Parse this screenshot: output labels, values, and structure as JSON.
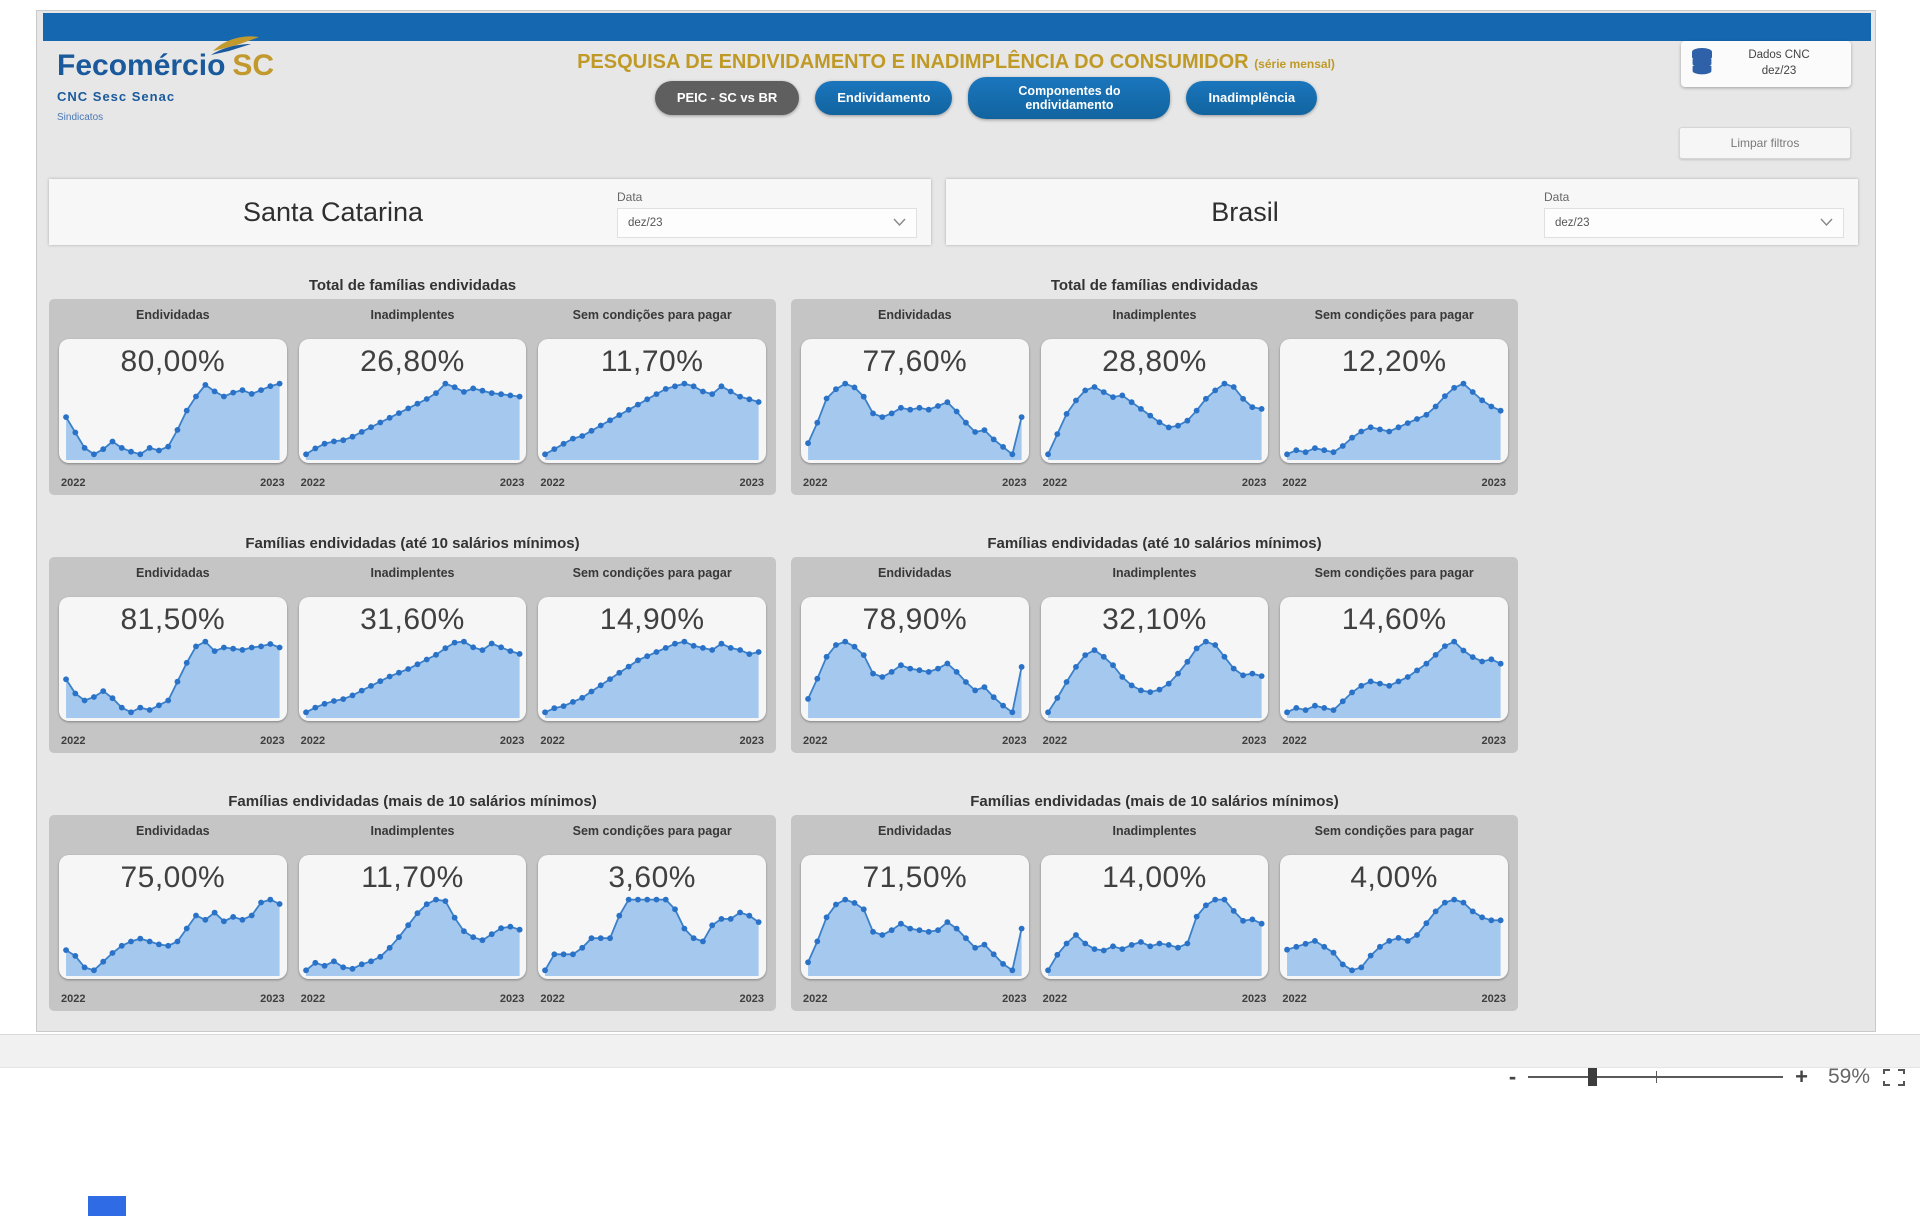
{
  "page": {
    "zoom_percent": "59%"
  },
  "colors": {
    "topbar_blue": "#1568b0",
    "brand_blue": "#1a5a9c",
    "brand_gold": "#c2992d",
    "title_gold": "#c09a27",
    "button_blue": "#146bb0",
    "button_dark": "#5f5f5f",
    "chart_fill": "#a5c9ee",
    "chart_line": "#3b80c9",
    "chart_dot": "#2a72c8",
    "group_gray": "#c5c5c5"
  },
  "icons": {
    "logo_swoosh": "logo-swoosh-icon",
    "database": "database-icon",
    "chevron_down": "chevron-down-icon",
    "minus": "minus-icon",
    "plus": "plus-icon",
    "fit_to_page": "fit-to-page-icon"
  },
  "header": {
    "logo": {
      "brand": "Fecomércio",
      "brand_accent": "SC",
      "sub": "CNC Sesc Senac",
      "sub2": "Sindicatos"
    },
    "title": "PESQUISA DE ENDIVIDAMENTO E INADIMPLÊNCIA DO CONSUMIDOR",
    "title_suffix": "(série mensal)",
    "nav_buttons": [
      {
        "label": "PEIC - SC vs BR",
        "active": true
      },
      {
        "label": "Endividamento",
        "active": false
      },
      {
        "label": "Componentes do endividamento",
        "active": false
      },
      {
        "label": "Inadimplência",
        "active": false
      }
    ],
    "data_source": {
      "line1": "Dados CNC",
      "line2": "dez/23"
    },
    "clear_filters_label": "Limpar filtros"
  },
  "filters": [
    {
      "region": "Santa Catarina",
      "date_label": "Data",
      "date_value": "dez/23"
    },
    {
      "region": "Brasil",
      "date_label": "Data",
      "date_value": "dez/23"
    }
  ],
  "zoom_bar": {
    "minus": "-",
    "plus": "+",
    "percent": "59%"
  },
  "chart_data": {
    "type": "area",
    "x": [
      "2022",
      "2023"
    ],
    "grid": false,
    "note": "monthly series jan/22 - dez/23, values in %, big label = last value (dez/23)",
    "regions": [
      {
        "name": "Santa Catarina",
        "sections": [
          {
            "title": "Total de famílias endividadas",
            "charts": [
              {
                "label": "Endividadas",
                "value_label": "80,00%",
                "values": [
                  77.4,
                  76.2,
                  75.0,
                  74.5,
                  74.9,
                  75.5,
                  75.0,
                  74.7,
                  74.5,
                  75.0,
                  74.8,
                  75.1,
                  76.4,
                  77.9,
                  79.0,
                  79.9,
                  79.4,
                  79.0,
                  79.3,
                  79.5,
                  79.2,
                  79.5,
                  79.8,
                  80.0
                ]
              },
              {
                "label": "Inadimplentes",
                "value_label": "26,80%",
                "values": [
                  21.9,
                  22.4,
                  22.8,
                  23.0,
                  23.1,
                  23.4,
                  23.8,
                  24.2,
                  24.6,
                  25.0,
                  25.4,
                  25.8,
                  26.2,
                  26.6,
                  27.1,
                  27.9,
                  27.6,
                  27.2,
                  27.5,
                  27.3,
                  27.1,
                  27.0,
                  26.9,
                  26.8
                ]
              },
              {
                "label": "Sem condições para pagar",
                "value_label": "11,70%",
                "values": [
                  9.7,
                  9.9,
                  10.1,
                  10.3,
                  10.4,
                  10.6,
                  10.8,
                  11.0,
                  11.2,
                  11.4,
                  11.6,
                  11.8,
                  12.0,
                  12.2,
                  12.3,
                  12.4,
                  12.3,
                  12.1,
                  12.0,
                  12.3,
                  12.1,
                  11.9,
                  11.8,
                  11.7
                ]
              }
            ]
          },
          {
            "title": "Famílias endividadas (até 10 salários mínimos)",
            "charts": [
              {
                "label": "Endividadas",
                "value_label": "81,50%",
                "values": [
                  78.8,
                  77.6,
                  77.0,
                  77.3,
                  77.8,
                  77.2,
                  76.4,
                  76.0,
                  76.4,
                  76.2,
                  76.6,
                  77.0,
                  78.6,
                  80.2,
                  81.6,
                  82.0,
                  81.2,
                  81.5,
                  81.4,
                  81.3,
                  81.5,
                  81.6,
                  81.8,
                  81.5
                ]
              },
              {
                "label": "Inadimplentes",
                "value_label": "31,60%",
                "values": [
                  25.4,
                  25.9,
                  26.3,
                  26.6,
                  26.8,
                  27.2,
                  27.7,
                  28.2,
                  28.7,
                  29.2,
                  29.6,
                  30.0,
                  30.5,
                  31.0,
                  31.5,
                  32.2,
                  32.8,
                  32.9,
                  32.3,
                  32.0,
                  32.7,
                  32.3,
                  31.9,
                  31.6
                ]
              },
              {
                "label": "Sem condições para pagar",
                "value_label": "14,90%",
                "values": [
                  12.0,
                  12.2,
                  12.3,
                  12.5,
                  12.7,
                  13.0,
                  13.3,
                  13.6,
                  13.9,
                  14.2,
                  14.5,
                  14.7,
                  14.9,
                  15.1,
                  15.3,
                  15.4,
                  15.2,
                  15.1,
                  15.0,
                  15.3,
                  15.1,
                  15.0,
                  14.8,
                  14.9
                ]
              }
            ]
          },
          {
            "title": "Famílias endividadas (mais de 10 salários mínimos)",
            "charts": [
              {
                "label": "Endividadas",
                "value_label": "75,00%",
                "values": [
                  71.8,
                  71.4,
                  70.6,
                  70.4,
                  71.0,
                  71.6,
                  72.1,
                  72.4,
                  72.6,
                  72.4,
                  72.2,
                  72.1,
                  72.4,
                  73.3,
                  74.2,
                  73.9,
                  74.4,
                  73.8,
                  74.1,
                  73.9,
                  74.2,
                  75.1,
                  75.3,
                  75.0
                ]
              },
              {
                "label": "Inadimplentes",
                "value_label": "11,70%",
                "values": [
                  9.0,
                  9.5,
                  9.3,
                  9.6,
                  9.2,
                  9.1,
                  9.4,
                  9.6,
                  9.9,
                  10.5,
                  11.2,
                  12.0,
                  12.8,
                  13.4,
                  13.7,
                  13.6,
                  12.5,
                  11.6,
                  11.2,
                  11.0,
                  11.4,
                  11.8,
                  11.9,
                  11.7
                ]
              },
              {
                "label": "Sem condições para pagar",
                "value_label": "3,60%",
                "values": [
                  2.1,
                  2.6,
                  2.6,
                  2.6,
                  2.8,
                  3.1,
                  3.1,
                  3.1,
                  3.8,
                  4.3,
                  4.3,
                  4.3,
                  4.3,
                  4.3,
                  4.0,
                  3.4,
                  3.1,
                  3.0,
                  3.5,
                  3.7,
                  3.7,
                  3.9,
                  3.8,
                  3.6
                ]
              }
            ]
          }
        ]
      },
      {
        "name": "Brasil",
        "sections": [
          {
            "title": "Total de famílias endividadas",
            "charts": [
              {
                "label": "Endividadas",
                "value_label": "77,60%",
                "values": [
                  76.2,
                  77.3,
                  78.6,
                  79.1,
                  79.4,
                  79.2,
                  78.7,
                  77.8,
                  77.6,
                  77.8,
                  78.1,
                  78.0,
                  78.1,
                  78.0,
                  78.2,
                  78.4,
                  77.9,
                  77.3,
                  76.8,
                  76.9,
                  76.4,
                  76.0,
                  75.6,
                  77.6
                ]
              },
              {
                "label": "Inadimplentes",
                "value_label": "28,80%",
                "values": [
                  26.1,
                  27.3,
                  28.5,
                  29.3,
                  29.9,
                  30.1,
                  29.8,
                  29.5,
                  29.6,
                  29.2,
                  28.8,
                  28.4,
                  28.0,
                  27.7,
                  27.8,
                  28.1,
                  28.7,
                  29.4,
                  29.9,
                  30.3,
                  30.1,
                  29.4,
                  28.9,
                  28.8
                ]
              },
              {
                "label": "Sem condições para pagar",
                "value_label": "12,20%",
                "values": [
                  10.1,
                  10.3,
                  10.2,
                  10.4,
                  10.3,
                  10.2,
                  10.5,
                  10.9,
                  11.2,
                  11.4,
                  11.3,
                  11.2,
                  11.4,
                  11.6,
                  11.8,
                  12.0,
                  12.4,
                  12.9,
                  13.3,
                  13.5,
                  13.1,
                  12.7,
                  12.4,
                  12.2
                ]
              }
            ]
          },
          {
            "title": "Famílias endividadas (até 10 salários mínimos)",
            "charts": [
              {
                "label": "Endividadas",
                "value_label": "78,90%",
                "values": [
                  77.0,
                  78.2,
                  79.5,
                  80.2,
                  80.4,
                  80.1,
                  79.6,
                  78.5,
                  78.3,
                  78.6,
                  79.0,
                  78.8,
                  78.7,
                  78.6,
                  78.8,
                  79.1,
                  78.6,
                  78.0,
                  77.5,
                  77.7,
                  77.1,
                  76.6,
                  76.2,
                  78.9
                ]
              },
              {
                "label": "Inadimplentes",
                "value_label": "32,10%",
                "values": [
                  27.8,
                  29.5,
                  31.4,
                  33.2,
                  34.6,
                  35.2,
                  34.4,
                  33.4,
                  32.0,
                  31.0,
                  30.4,
                  30.2,
                  30.5,
                  31.2,
                  32.4,
                  33.8,
                  35.4,
                  36.2,
                  35.8,
                  34.4,
                  33.0,
                  32.2,
                  32.4,
                  32.1
                ]
              },
              {
                "label": "Sem condições para pagar",
                "value_label": "14,60%",
                "values": [
                  12.4,
                  12.6,
                  12.5,
                  12.7,
                  12.6,
                  12.5,
                  12.9,
                  13.3,
                  13.6,
                  13.8,
                  13.7,
                  13.6,
                  13.8,
                  14.0,
                  14.3,
                  14.6,
                  15.0,
                  15.4,
                  15.6,
                  15.2,
                  14.9,
                  14.7,
                  14.8,
                  14.6
                ]
              }
            ]
          },
          {
            "title": "Famílias endividadas (mais de 10 salários mínimos)",
            "charts": [
              {
                "label": "Endividadas",
                "value_label": "71,50%",
                "values": [
                  69.4,
                  70.7,
                  72.2,
                  73.0,
                  73.3,
                  73.1,
                  72.7,
                  71.3,
                  71.1,
                  71.4,
                  71.8,
                  71.5,
                  71.4,
                  71.3,
                  71.4,
                  71.9,
                  71.5,
                  70.9,
                  70.3,
                  70.5,
                  69.9,
                  69.3,
                  68.9,
                  71.5
                ]
              },
              {
                "label": "Inadimplentes",
                "value_label": "14,00%",
                "values": [
                  10.7,
                  11.8,
                  12.6,
                  13.2,
                  12.6,
                  12.2,
                  12.1,
                  12.4,
                  12.2,
                  12.5,
                  12.7,
                  12.4,
                  12.6,
                  12.5,
                  12.3,
                  12.6,
                  14.5,
                  15.3,
                  15.7,
                  15.7,
                  14.9,
                  14.2,
                  14.3,
                  14.0
                ]
              },
              {
                "label": "Sem condições para pagar",
                "value_label": "4,00%",
                "values": [
                  3.0,
                  3.1,
                  3.2,
                  3.3,
                  3.1,
                  2.9,
                  2.5,
                  2.3,
                  2.4,
                  2.8,
                  3.1,
                  3.3,
                  3.4,
                  3.3,
                  3.5,
                  3.9,
                  4.3,
                  4.6,
                  4.7,
                  4.6,
                  4.3,
                  4.1,
                  4.0,
                  4.0
                ]
              }
            ]
          }
        ]
      }
    ]
  }
}
